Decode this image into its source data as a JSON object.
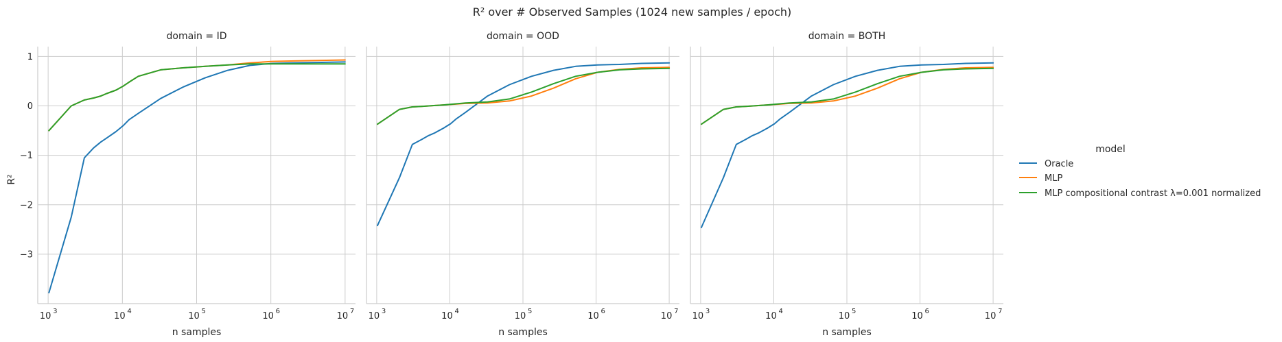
{
  "figure": {
    "title": "R² over # Observed Samples (1024 new samples / epoch)",
    "y_label": "R²",
    "x_label": "n samples"
  },
  "legend": {
    "title": "model",
    "entries": [
      {
        "name": "Oracle",
        "color": "#1f77b4"
      },
      {
        "name": "MLP",
        "color": "#ff7f0e"
      },
      {
        "name": "MLP compositional contrast λ=0.001 normalized",
        "color": "#2ca02c"
      }
    ],
    "placement": "right"
  },
  "chart_data": [
    {
      "type": "line",
      "panel_title": "domain = ID",
      "xscale": "log",
      "xlim": [
        1000,
        10000000
      ],
      "ylim": [
        -4.0,
        1.2
      ],
      "x_ticks": [
        1000,
        10000,
        100000,
        1000000,
        10000000
      ],
      "x_tick_labels": [
        "10",
        "10",
        "10",
        "10",
        "10"
      ],
      "x_tick_exponents": [
        "3",
        "4",
        "5",
        "6",
        "7"
      ],
      "y_ticks": [
        1,
        0,
        -1,
        -2,
        -3
      ],
      "y_tick_labels": [
        "1",
        "0",
        "−1",
        "−2",
        "−3"
      ],
      "grid": true,
      "series": [
        {
          "name": "Oracle",
          "color": "#1f77b4",
          "x": [
            1024,
            2048,
            3072,
            4096,
            5120,
            6144,
            8192,
            10240,
            12288,
            16384,
            32768,
            65536,
            131072,
            262144,
            524288,
            1048576,
            2097152,
            4194304,
            10000000
          ],
          "y": [
            -3.78,
            -2.25,
            -1.05,
            -0.85,
            -0.73,
            -0.65,
            -0.52,
            -0.4,
            -0.28,
            -0.15,
            0.15,
            0.38,
            0.57,
            0.72,
            0.82,
            0.86,
            0.87,
            0.88,
            0.89
          ]
        },
        {
          "name": "MLP",
          "color": "#ff7f0e",
          "x": [
            1024,
            2048,
            3072,
            4096,
            5120,
            6144,
            8192,
            10240,
            12288,
            16384,
            32768,
            65536,
            131072,
            262144,
            524288,
            1048576,
            2097152,
            4194304,
            10000000
          ],
          "y": [
            -0.5,
            0.0,
            0.12,
            0.16,
            0.2,
            0.25,
            0.32,
            0.4,
            0.48,
            0.6,
            0.73,
            0.77,
            0.8,
            0.83,
            0.87,
            0.9,
            0.91,
            0.92,
            0.93
          ]
        },
        {
          "name": "MLP compositional contrast λ=0.001 normalized",
          "color": "#2ca02c",
          "x": [
            1024,
            2048,
            3072,
            4096,
            5120,
            6144,
            8192,
            10240,
            12288,
            16384,
            32768,
            65536,
            131072,
            262144,
            524288,
            1048576,
            2097152,
            4194304,
            10000000
          ],
          "y": [
            -0.5,
            0.0,
            0.12,
            0.16,
            0.2,
            0.25,
            0.32,
            0.4,
            0.48,
            0.6,
            0.73,
            0.77,
            0.8,
            0.83,
            0.85,
            0.85,
            0.85,
            0.85,
            0.85
          ]
        }
      ]
    },
    {
      "type": "line",
      "panel_title": "domain = OOD",
      "xscale": "log",
      "xlim": [
        1000,
        10000000
      ],
      "ylim": [
        -4.0,
        1.2
      ],
      "x_ticks": [
        1000,
        10000,
        100000,
        1000000,
        10000000
      ],
      "x_tick_labels": [
        "10",
        "10",
        "10",
        "10",
        "10"
      ],
      "x_tick_exponents": [
        "3",
        "4",
        "5",
        "6",
        "7"
      ],
      "grid": true,
      "series": [
        {
          "name": "Oracle",
          "color": "#1f77b4",
          "x": [
            1024,
            2048,
            3072,
            4096,
            5120,
            6144,
            8192,
            10240,
            12288,
            16384,
            32768,
            65536,
            131072,
            262144,
            524288,
            1048576,
            2097152,
            4194304,
            10000000
          ],
          "y": [
            -2.42,
            -1.45,
            -0.78,
            -0.68,
            -0.6,
            -0.55,
            -0.45,
            -0.36,
            -0.26,
            -0.13,
            0.2,
            0.43,
            0.6,
            0.72,
            0.8,
            0.83,
            0.84,
            0.86,
            0.87
          ]
        },
        {
          "name": "MLP",
          "color": "#ff7f0e",
          "x": [
            1024,
            2048,
            3072,
            4096,
            8192,
            16384,
            32768,
            65536,
            131072,
            262144,
            524288,
            1048576,
            2097152,
            4194304,
            10000000
          ],
          "y": [
            -0.37,
            -0.07,
            -0.02,
            -0.01,
            0.02,
            0.05,
            0.06,
            0.1,
            0.2,
            0.36,
            0.55,
            0.68,
            0.74,
            0.77,
            0.78
          ]
        },
        {
          "name": "MLP compositional contrast λ=0.001 normalized",
          "color": "#2ca02c",
          "x": [
            1024,
            2048,
            3072,
            4096,
            8192,
            16384,
            32768,
            65536,
            131072,
            262144,
            524288,
            1048576,
            2097152,
            4194304,
            10000000
          ],
          "y": [
            -0.37,
            -0.07,
            -0.02,
            -0.01,
            0.02,
            0.06,
            0.08,
            0.14,
            0.28,
            0.45,
            0.6,
            0.68,
            0.73,
            0.75,
            0.76
          ]
        }
      ]
    },
    {
      "type": "line",
      "panel_title": "domain = BOTH",
      "xscale": "log",
      "xlim": [
        1000,
        10000000
      ],
      "ylim": [
        -4.0,
        1.2
      ],
      "x_ticks": [
        1000,
        10000,
        100000,
        1000000,
        10000000
      ],
      "x_tick_labels": [
        "10",
        "10",
        "10",
        "10",
        "10"
      ],
      "x_tick_exponents": [
        "3",
        "4",
        "5",
        "6",
        "7"
      ],
      "grid": true,
      "series": [
        {
          "name": "Oracle",
          "color": "#1f77b4",
          "x": [
            1024,
            2048,
            3072,
            4096,
            5120,
            6144,
            8192,
            10240,
            12288,
            16384,
            32768,
            65536,
            131072,
            262144,
            524288,
            1048576,
            2097152,
            4194304,
            10000000
          ],
          "y": [
            -2.46,
            -1.45,
            -0.78,
            -0.68,
            -0.6,
            -0.55,
            -0.45,
            -0.36,
            -0.26,
            -0.13,
            0.2,
            0.43,
            0.6,
            0.72,
            0.8,
            0.83,
            0.84,
            0.86,
            0.87
          ]
        },
        {
          "name": "MLP",
          "color": "#ff7f0e",
          "x": [
            1024,
            2048,
            3072,
            4096,
            8192,
            16384,
            32768,
            65536,
            131072,
            262144,
            524288,
            1048576,
            2097152,
            4194304,
            10000000
          ],
          "y": [
            -0.37,
            -0.07,
            -0.02,
            -0.01,
            0.02,
            0.05,
            0.06,
            0.1,
            0.2,
            0.36,
            0.55,
            0.68,
            0.74,
            0.77,
            0.78
          ]
        },
        {
          "name": "MLP compositional contrast λ=0.001 normalized",
          "color": "#2ca02c",
          "x": [
            1024,
            2048,
            3072,
            4096,
            8192,
            16384,
            32768,
            65536,
            131072,
            262144,
            524288,
            1048576,
            2097152,
            4194304,
            10000000
          ],
          "y": [
            -0.37,
            -0.07,
            -0.02,
            -0.01,
            0.02,
            0.06,
            0.08,
            0.14,
            0.28,
            0.45,
            0.6,
            0.68,
            0.73,
            0.75,
            0.76
          ]
        }
      ]
    }
  ]
}
